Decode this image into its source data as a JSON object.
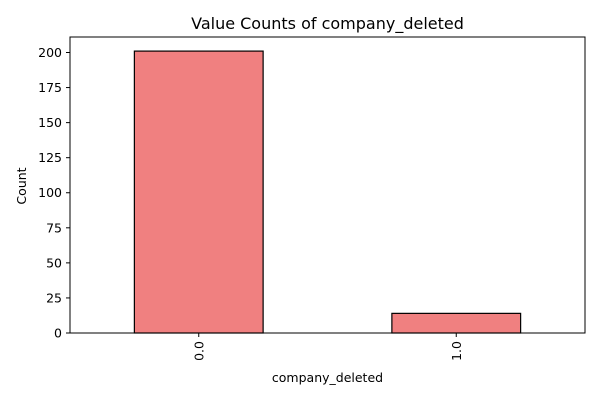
{
  "chart_data": {
    "type": "bar",
    "title": "Value Counts of company_deleted",
    "xlabel": "company_deleted",
    "ylabel": "Count",
    "categories": [
      "0.0",
      "1.0"
    ],
    "values": [
      201,
      14
    ],
    "ylim": [
      0,
      211.05
    ],
    "yticks": [
      0,
      25,
      50,
      75,
      100,
      125,
      150,
      175,
      200
    ],
    "ytick_labels": [
      "0",
      "25",
      "50",
      "75",
      "100",
      "125",
      "150",
      "175",
      "200"
    ],
    "grid": false,
    "legend": "none",
    "bar_color": "#f08080",
    "bar_edge_color": "#000000"
  }
}
